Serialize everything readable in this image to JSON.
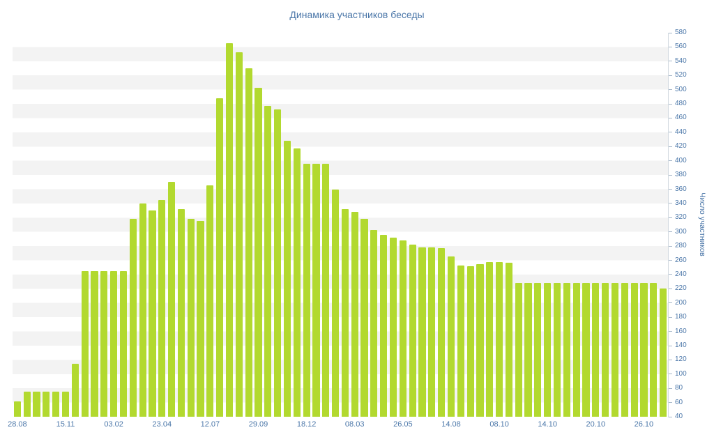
{
  "title": "Динамика участников беседы",
  "chart_data": {
    "type": "bar",
    "title": "Динамика участников беседы",
    "xlabel": "",
    "ylabel": "Число участников",
    "ylim": [
      40,
      580
    ],
    "ytick_step": 20,
    "bar_color": "#b2d92f",
    "band_color": "#f3f3f3",
    "text_color": "#4a76a8",
    "grid": "horizontal-bands",
    "legend_position": "none",
    "x_tick_labels": [
      "28.08",
      "15.11",
      "03.02",
      "23.04",
      "12.07",
      "29.09",
      "18.12",
      "08.03",
      "26.05",
      "14.08",
      "08.10",
      "14.10",
      "20.10",
      "26.10"
    ],
    "x_tick_every": 5,
    "values": [
      62,
      75,
      75,
      75,
      75,
      75,
      115,
      245,
      245,
      245,
      245,
      245,
      318,
      340,
      330,
      345,
      370,
      332,
      318,
      315,
      365,
      488,
      565,
      553,
      530,
      503,
      477,
      472,
      428,
      417,
      396,
      396,
      396,
      360,
      332,
      328,
      318,
      303,
      296,
      292,
      288,
      282,
      278,
      278,
      277,
      265,
      253,
      252,
      255,
      258,
      258,
      257,
      228,
      228,
      228,
      228,
      228,
      228,
      228,
      228,
      228,
      228,
      228,
      228,
      228,
      228,
      228,
      220
    ]
  }
}
